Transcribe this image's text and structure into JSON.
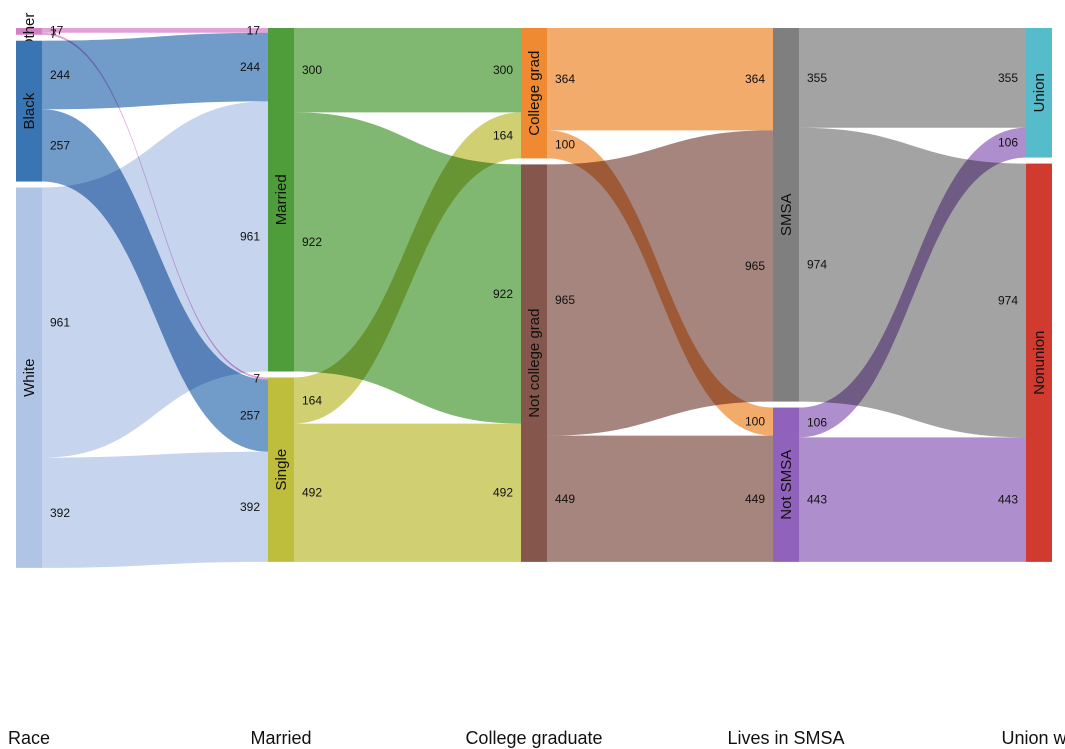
{
  "chart_data": {
    "type": "sankey",
    "stages": [
      "Race",
      "Married",
      "College graduate",
      "Lives in SMSA",
      "Union wo"
    ],
    "nodes": [
      {
        "id": "race_other",
        "label": "Other",
        "stage": 0,
        "color": "#d57fc8"
      },
      {
        "id": "race_black",
        "label": "Black",
        "stage": 0,
        "color": "#3a75b3"
      },
      {
        "id": "race_white",
        "label": "White",
        "stage": 0,
        "color": "#b0c4e6"
      },
      {
        "id": "married_married",
        "label": "Married",
        "stage": 1,
        "color": "#4f9d3a"
      },
      {
        "id": "married_single",
        "label": "Single",
        "stage": 1,
        "color": "#bebd3c"
      },
      {
        "id": "college_grad",
        "label": "College grad",
        "stage": 2,
        "color": "#ef8a33"
      },
      {
        "id": "college_not",
        "label": "Not college grad",
        "stage": 2,
        "color": "#84564c"
      },
      {
        "id": "smsa_yes",
        "label": "SMSA",
        "stage": 3,
        "color": "#7f7f7f"
      },
      {
        "id": "smsa_no",
        "label": "Not SMSA",
        "stage": 3,
        "color": "#9062bb"
      },
      {
        "id": "union_yes",
        "label": "Union",
        "stage": 4,
        "color": "#56bccc"
      },
      {
        "id": "union_no",
        "label": "Nonunion",
        "stage": 4,
        "color": "#d03a2f"
      }
    ],
    "links": [
      {
        "source": "race_other",
        "target": "married_married",
        "value": 17,
        "color": "#d57fc8",
        "source_label": "17",
        "target_label": "17"
      },
      {
        "source": "race_black",
        "target": "married_married",
        "value": 244,
        "color": "#3a75b3",
        "source_label": "244",
        "target_label": "244"
      },
      {
        "source": "race_white",
        "target": "married_married",
        "value": 961,
        "color": "#b0c4e6",
        "source_label": "961",
        "target_label": "961"
      },
      {
        "source": "race_other",
        "target": "married_single",
        "value": 7,
        "color": "#d57fc8",
        "source_label": "7",
        "target_label": "7"
      },
      {
        "source": "race_black",
        "target": "married_single",
        "value": 257,
        "color": "#3a75b3",
        "source_label": "257",
        "target_label": "257"
      },
      {
        "source": "race_white",
        "target": "married_single",
        "value": 392,
        "color": "#b0c4e6",
        "source_label": "392",
        "target_label": "392"
      },
      {
        "source": "married_married",
        "target": "college_grad",
        "value": 300,
        "color": "#4f9d3a",
        "source_label": "300",
        "target_label": "300"
      },
      {
        "source": "married_single",
        "target": "college_grad",
        "value": 164,
        "color": "#bebd3c",
        "source_label": "164",
        "target_label": "164"
      },
      {
        "source": "married_married",
        "target": "college_not",
        "value": 922,
        "color": "#4f9d3a",
        "source_label": "922",
        "target_label": "922"
      },
      {
        "source": "married_single",
        "target": "college_not",
        "value": 492,
        "color": "#bebd3c",
        "source_label": "492",
        "target_label": "492"
      },
      {
        "source": "college_grad",
        "target": "smsa_yes",
        "value": 364,
        "color": "#ef8a33",
        "source_label": "364",
        "target_label": "364"
      },
      {
        "source": "college_not",
        "target": "smsa_yes",
        "value": 965,
        "color": "#84564c",
        "source_label": "965",
        "target_label": "965"
      },
      {
        "source": "college_grad",
        "target": "smsa_no",
        "value": 100,
        "color": "#ef8a33",
        "source_label": "100",
        "target_label": "100"
      },
      {
        "source": "college_not",
        "target": "smsa_no",
        "value": 449,
        "color": "#84564c",
        "source_label": "449",
        "target_label": "449"
      },
      {
        "source": "smsa_yes",
        "target": "union_yes",
        "value": 355,
        "color": "#7f7f7f",
        "source_label": "355",
        "target_label": "355"
      },
      {
        "source": "smsa_no",
        "target": "union_yes",
        "value": 106,
        "color": "#9062bb",
        "source_label": "106",
        "target_label": "106"
      },
      {
        "source": "smsa_yes",
        "target": "union_no",
        "value": 974,
        "color": "#7f7f7f",
        "source_label": "974",
        "target_label": "974"
      },
      {
        "source": "smsa_no",
        "target": "union_no",
        "value": 443,
        "color": "#9062bb",
        "source_label": "443",
        "target_label": "443"
      }
    ]
  }
}
